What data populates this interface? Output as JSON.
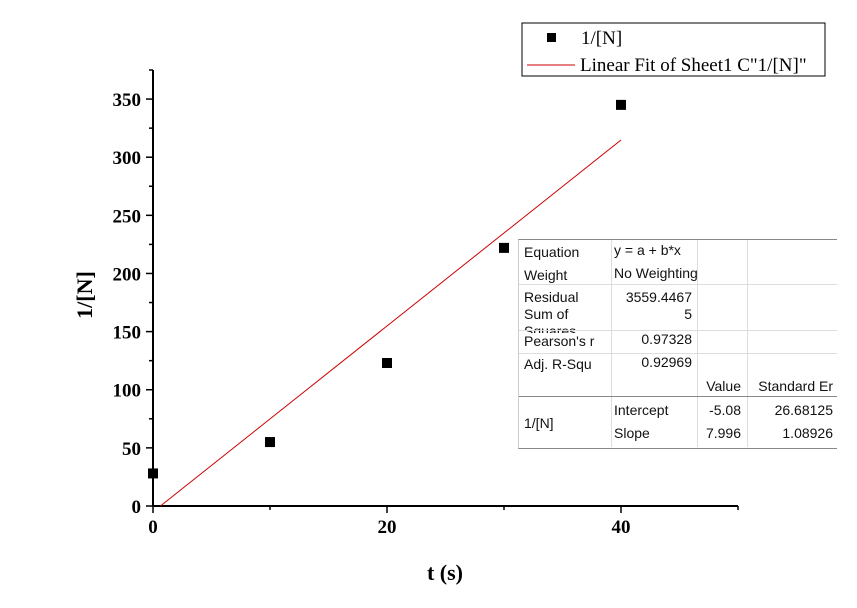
{
  "chart_data": {
    "type": "scatter",
    "xlabel": "t (s)",
    "ylabel": "1/[N]",
    "xlim": [
      0,
      50
    ],
    "ylim": [
      0,
      375
    ],
    "xticks": [
      0,
      20,
      40
    ],
    "yticks": [
      0,
      50,
      100,
      150,
      200,
      250,
      300,
      350
    ],
    "series": [
      {
        "name": "1/[N]",
        "type": "scatter",
        "x": [
          0,
          10,
          20,
          30,
          40
        ],
        "y": [
          28,
          55,
          123,
          222,
          345
        ],
        "color": "#000000"
      },
      {
        "name": "Linear Fit of Sheet1 C\"1/[N]\"",
        "type": "line",
        "intercept": -5.08,
        "slope": 7.996,
        "x_range": [
          0.635,
          40
        ],
        "color": "#cc0000"
      }
    ],
    "legend_position": "top-right",
    "fit_table": {
      "equation_label": "Equation",
      "equation": "y = a + b*x",
      "weight_label": "Weight",
      "weight": "No Weighting",
      "rss_label": "Residual Sum of Squares",
      "rss_line1": "Residual",
      "rss_line2": "Sum of",
      "rss_value1": "3559.4467",
      "rss_value2": "5",
      "pearson_label": "Pearson's r",
      "pearson": "0.97328",
      "adjr_label": "Adj. R-Squ",
      "adjr": "0.92969",
      "value_header": "Value",
      "stderr_header": "Standard Er",
      "row_label": "1/[N]",
      "intercept_label": "Intercept",
      "intercept_value": "-5.08",
      "intercept_err": "26.68125",
      "slope_label": "Slope",
      "slope_value": "7.996",
      "slope_err": "1.08926"
    }
  }
}
